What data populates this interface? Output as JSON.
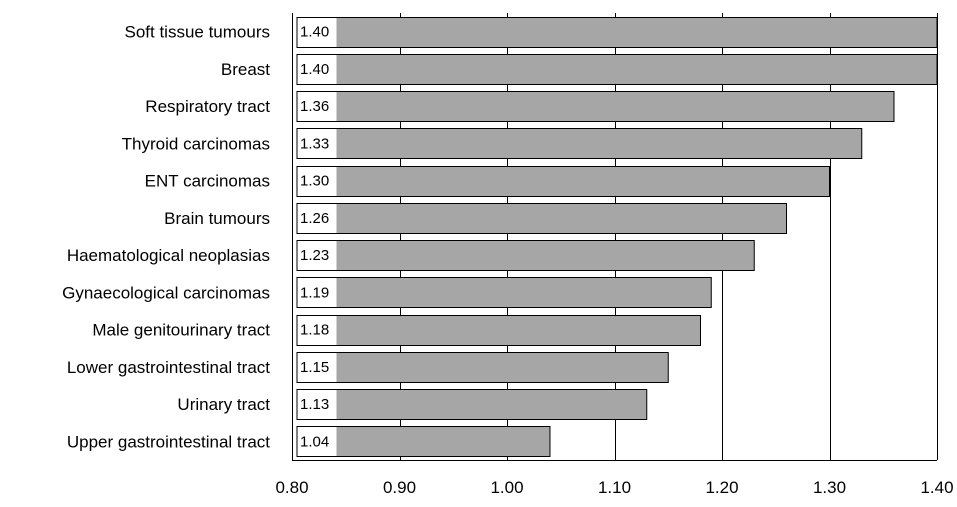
{
  "chart_data": {
    "type": "bar",
    "orientation": "horizontal",
    "categories": [
      "Soft tissue tumours",
      "Breast",
      "Respiratory tract",
      "Thyroid carcinomas",
      "ENT carcinomas",
      "Brain tumours",
      "Haematological neoplasias",
      "Gynaecological carcinomas",
      "Male genitourinary tract",
      "Lower gastrointestinal tract",
      "Urinary tract",
      "Upper gastrointestinal tract"
    ],
    "values": [
      1.4,
      1.4,
      1.36,
      1.33,
      1.3,
      1.26,
      1.23,
      1.19,
      1.18,
      1.15,
      1.13,
      1.04
    ],
    "value_labels": [
      "1.40",
      "1.40",
      "1.36",
      "1.33",
      "1.30",
      "1.26",
      "1.23",
      "1.19",
      "1.18",
      "1.15",
      "1.13",
      "1.04"
    ],
    "title": "",
    "xlabel": "",
    "ylabel": "",
    "xlim": [
      0.8,
      1.4
    ],
    "x_ticks": [
      0.8,
      0.9,
      1.0,
      1.1,
      1.2,
      1.3,
      1.4
    ],
    "x_tick_labels": [
      "0.80",
      "0.90",
      "1.00",
      "1.10",
      "1.20",
      "1.30",
      "1.40"
    ],
    "grid": "vertical",
    "legend": "none",
    "colors": {
      "bar": "#a6a6a6",
      "bar_outline": "#000000",
      "grid": "#000000"
    }
  }
}
